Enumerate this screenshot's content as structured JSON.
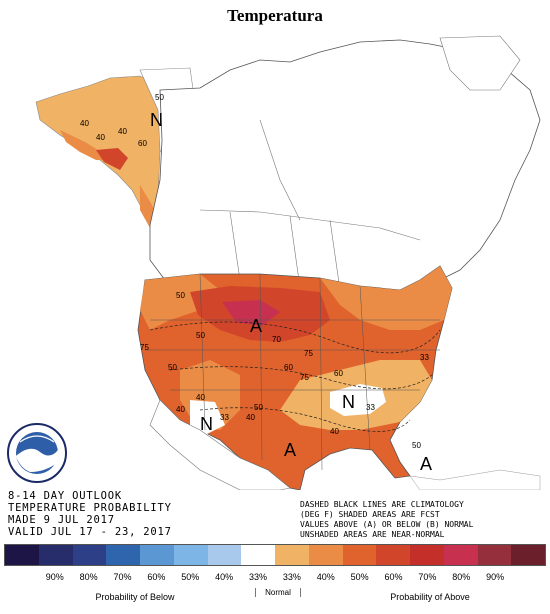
{
  "title": "Temperatura",
  "outlook": {
    "line1": "8-14 DAY OUTLOOK",
    "line2": "TEMPERATURE PROBABILITY",
    "line3": "MADE  9 JUL 2017",
    "line4": "VALID  JUL 17 - 23, 2017"
  },
  "note": {
    "line1": "DASHED BLACK LINES ARE CLIMATOLOGY",
    "line2": "(DEG F) SHADED AREAS ARE FCST",
    "line3": "VALUES ABOVE (A) OR BELOW (B) NORMAL",
    "line4": "UNSHADED AREAS ARE NEAR-NORMAL"
  },
  "legend": {
    "colors": [
      "#1c1545",
      "#262d6a",
      "#2d3f86",
      "#2e65ad",
      "#5a97d3",
      "#7db6e6",
      "#a9c9ec",
      "#ffffff",
      "#f0b264",
      "#eb8c46",
      "#e0622c",
      "#d1452a",
      "#c52f2a",
      "#c83050",
      "#962f3c",
      "#6a1f2a"
    ],
    "labels": [
      "90%",
      "80%",
      "70%",
      "60%",
      "50%",
      "40%",
      "33%",
      "33%",
      "40%",
      "50%",
      "60%",
      "70%",
      "80%",
      "90%"
    ],
    "below_caption": "Probability of Below",
    "normal_caption": "Normal",
    "above_caption": "Probability of Above"
  },
  "map": {
    "contour_labels": [
      "40",
      "40",
      "50",
      "60",
      "40",
      "50",
      "70",
      "50",
      "75",
      "75",
      "50",
      "60",
      "40",
      "40",
      "33",
      "40",
      "50",
      "60",
      "50",
      "75",
      "33",
      "40",
      "33"
    ],
    "region_letters": [
      "N",
      "A",
      "N",
      "A",
      "N",
      "A"
    ]
  }
}
